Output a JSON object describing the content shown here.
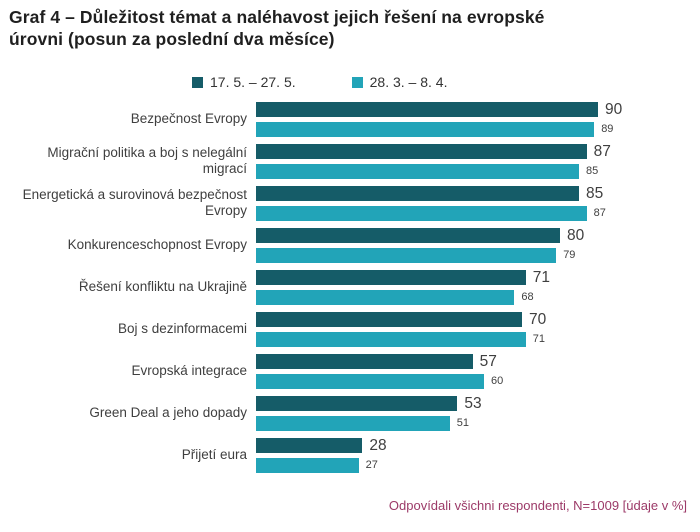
{
  "title_line1": "Graf 4 – Důležitost témat a naléhavost jejich řešení na evropské",
  "title_line2": "úrovni (posun za poslední dva měsíce)",
  "footnote": "Odpovídali všichni respondenti, N=1009 [údaje v %]",
  "colors": {
    "series1": "#155c68",
    "series2": "#22a4b8",
    "text": "#3f3f3f",
    "title": "#1f1f1f",
    "footnote": "#9c3a68",
    "background": "#ffffff"
  },
  "chart_data": {
    "type": "bar",
    "orientation": "horizontal",
    "title": "Graf 4 – Důležitost témat a naléhavost jejich řešení na evropské úrovni (posun za poslední dva měsíce)",
    "categories": [
      "Bezpečnost Evropy",
      "Migrační politika a boj s nelegální migrací",
      "Energetická a surovinová bezpečnost Evropy",
      "Konkurenceschopnost Evropy",
      "Řešení konfliktu na Ukrajině",
      "Boj s dezinformacemi",
      "Evropská integrace",
      "Green Deal a jeho dopady",
      "Přijetí eura"
    ],
    "series": [
      {
        "name": "17. 5. – 27. 5.",
        "color": "#155c68",
        "values": [
          90,
          87,
          85,
          80,
          71,
          70,
          57,
          53,
          28
        ]
      },
      {
        "name": "28. 3. – 8. 4.",
        "color": "#22a4b8",
        "values": [
          89,
          85,
          87,
          79,
          68,
          71,
          60,
          51,
          27
        ]
      }
    ],
    "xlim": [
      0,
      100
    ],
    "value_labels": true,
    "legend_position": "top",
    "grid": false,
    "footnote": "Odpovídali všichni respondenti, N=1009 [údaje v %]"
  }
}
